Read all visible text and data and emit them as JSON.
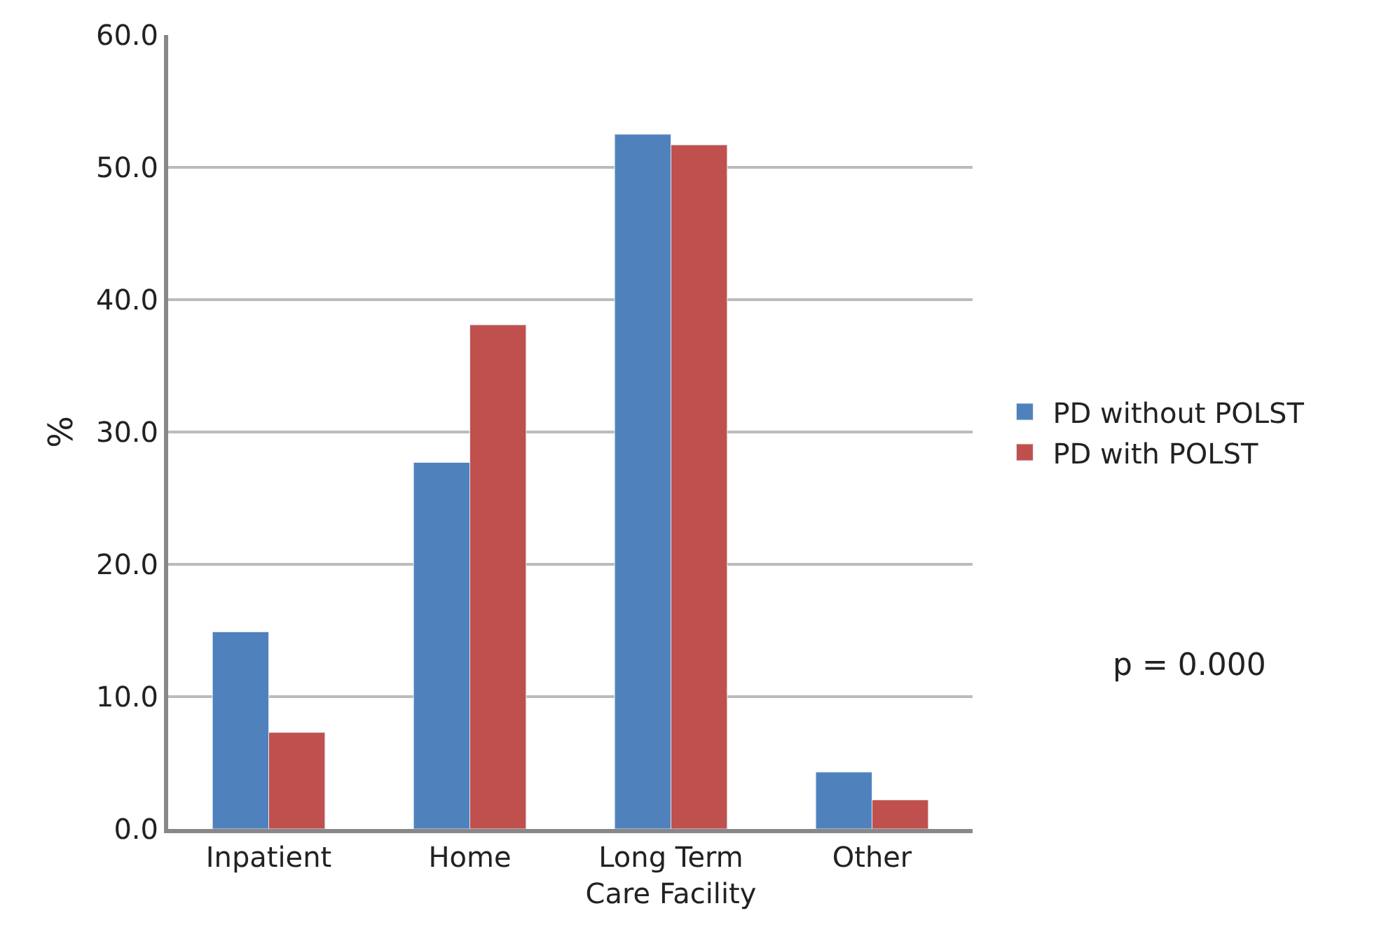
{
  "chart_data": {
    "type": "bar",
    "ylabel": "%",
    "categories": [
      "Inpatient",
      "Home",
      "Long Term Care Facility",
      "Other"
    ],
    "series": [
      {
        "name": "PD without POLST",
        "color": "#4f81bd",
        "values": [
          14.9,
          27.7,
          52.5,
          4.3
        ]
      },
      {
        "name": "PD with POLST",
        "color": "#c0504d",
        "values": [
          7.3,
          38.1,
          51.7,
          2.2
        ]
      }
    ],
    "ylim": [
      0,
      60
    ],
    "yticks": [
      {
        "value": 0,
        "label": "0.0"
      },
      {
        "value": 10,
        "label": "10.0"
      },
      {
        "value": 20,
        "label": "20.0"
      },
      {
        "value": 30,
        "label": "30.0"
      },
      {
        "value": 40,
        "label": "40.0"
      },
      {
        "value": 50,
        "label": "50.0"
      },
      {
        "value": 60,
        "label": "60.0"
      }
    ],
    "grid": "y",
    "legend": "right",
    "annotations": [
      "p = 0.000"
    ]
  }
}
